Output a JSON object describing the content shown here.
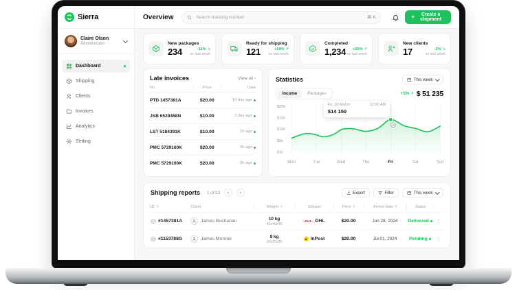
{
  "brand": {
    "name": "Sierra"
  },
  "topbar": {
    "title": "Overview",
    "search_placeholder": "Search tracking number",
    "shortcut": "⌘ K",
    "create_button_label": "Create a shipment"
  },
  "user": {
    "name": "Claire Olson",
    "role": "Administrator"
  },
  "sidebar": {
    "items": [
      {
        "label": "Dashboard"
      },
      {
        "label": "Shipping"
      },
      {
        "label": "Clients"
      },
      {
        "label": "Invoices"
      },
      {
        "label": "Analytics"
      },
      {
        "label": "Setting"
      }
    ]
  },
  "cards": [
    {
      "title": "New packages",
      "value": "234",
      "delta": "-11%",
      "arrow": "↘",
      "note": "vs last week"
    },
    {
      "title": "Ready for shipping",
      "value": "121",
      "delta": "+18%",
      "arrow": "↗",
      "note": "vs last week"
    },
    {
      "title": "Completed",
      "value": "1,234",
      "delta": "+25%",
      "arrow": "↗",
      "note": "vs last week"
    },
    {
      "title": "New clients",
      "value": "17",
      "delta": "-3%",
      "arrow": "↘",
      "note": "vs last week"
    }
  ],
  "late_invoices": {
    "title": "Late invoices",
    "view_all_label": "View all",
    "columns": [
      "No",
      "Price",
      "Date"
    ],
    "rows": [
      {
        "no": "PTD 1457381A",
        "price": "$20.00",
        "date": "10 day ago"
      },
      {
        "no": "JSB 6529468N",
        "price": "$10.00",
        "date": "1 day ago"
      },
      {
        "no": "LST 5184391K",
        "price": "$10.00",
        "date": "1h ago"
      },
      {
        "no": "PMC 5729160K",
        "price": "$20.00",
        "date": "2h ago"
      },
      {
        "no": "PMC 5729160K",
        "price": "$20.00",
        "date": "2h ago"
      }
    ]
  },
  "statistics": {
    "title": "Statistics",
    "period_label": "This week",
    "tabs": [
      {
        "label": "Income"
      },
      {
        "label": "Packages"
      }
    ],
    "delta": "+5%",
    "arrow": "↗",
    "total": "$ 51 235",
    "tooltip": {
      "date": "Fri, 30 March",
      "time": "12:00 AM",
      "value": "$14 150"
    }
  },
  "chart_data": {
    "type": "area",
    "title": "Income by day",
    "categories": [
      "Mon",
      "Tue",
      "Wed",
      "Thu",
      "Fri",
      "Sat",
      "Sun"
    ],
    "series": [
      {
        "name": "Income",
        "values": [
          6000,
          7600,
          10000,
          9000,
          14150,
          10300,
          11200
        ]
      }
    ],
    "curve_detail": [
      [
        0,
        6000
      ],
      [
        0.5,
        7900
      ],
      [
        0.9,
        7700
      ],
      [
        1.3,
        6600
      ],
      [
        1.7,
        7700
      ],
      [
        2.05,
        9900
      ],
      [
        2.5,
        10100
      ],
      [
        3,
        9000
      ],
      [
        3.5,
        10400
      ],
      [
        4,
        14150
      ],
      [
        4.55,
        11400
      ],
      [
        5,
        10300
      ],
      [
        5.5,
        8800
      ],
      [
        6,
        11200
      ]
    ],
    "ylim": [
      1000,
      20000
    ],
    "yticks": [
      20000,
      15000,
      10000,
      5000,
      1000
    ],
    "ytick_labels": [
      "$20k",
      "$15k",
      "$10k",
      "$5k",
      "$1k"
    ],
    "highlight_category": "Fri",
    "highlight_value": 14150,
    "grid": "vertical",
    "legend": "none",
    "accent_color": "#1CC25B"
  },
  "shipping_reports": {
    "title": "Shipping reports",
    "pagination": "1 of 13",
    "export_label": "Export",
    "filter_label": "Filter",
    "period_label": "This week",
    "columns": {
      "id": "ID",
      "client": "Client",
      "weight": "Weight",
      "shipper": "Shipper",
      "price": "Price",
      "arrival": "Arrival date",
      "status": "Status"
    },
    "rows": [
      {
        "id": "#1457381A",
        "client": "James Buchanan",
        "weight": "10 kg",
        "dimensions": "40x40x40",
        "shipper": "DHL",
        "price": "$20.00",
        "arrival": "Jun 28, 2024",
        "status": "Delivered"
      },
      {
        "id": "#1153788G",
        "client": "James Monroe",
        "weight": "8 kg",
        "dimensions": "20x15x25",
        "shipper": "InPost",
        "price": "$20.00",
        "arrival": "Jul 01, 2024",
        "status": "Pending"
      }
    ]
  },
  "colors": {
    "accent": "#1CC25B",
    "dhl_red": "#D40511",
    "inpost_yellow": "#FFCB04"
  }
}
